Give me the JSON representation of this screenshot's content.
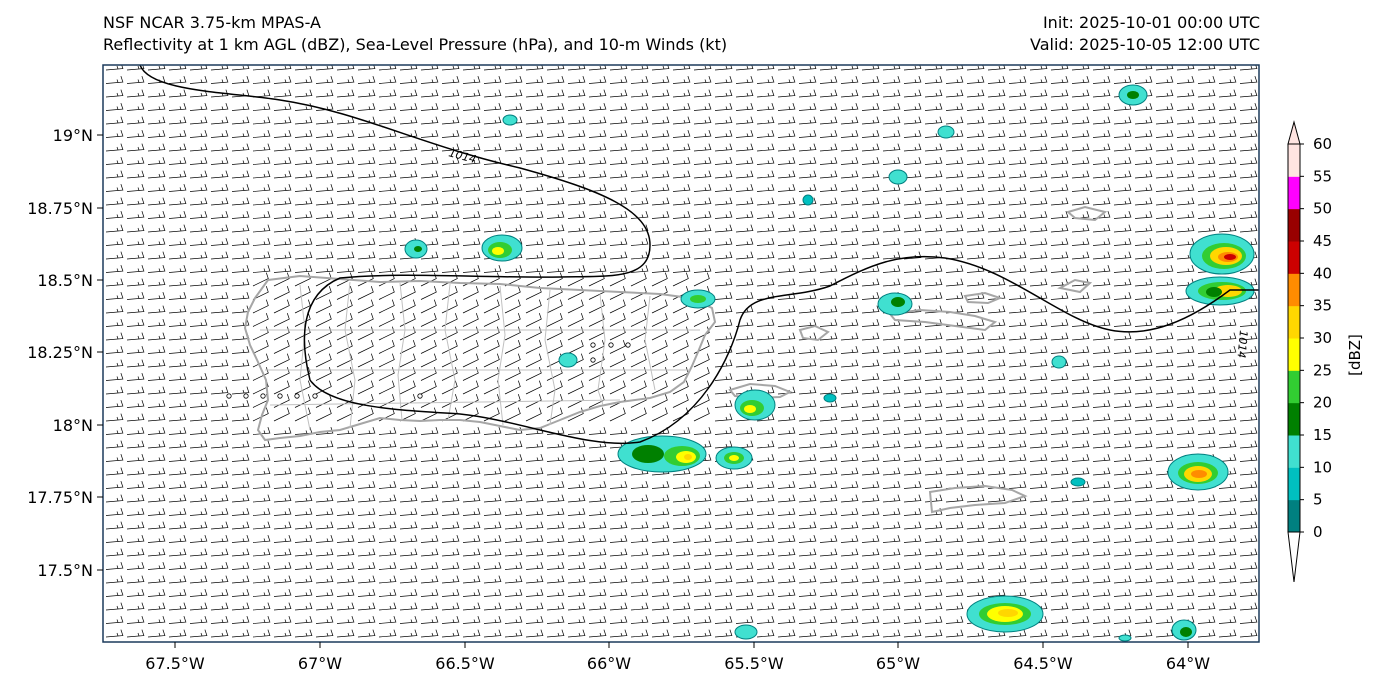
{
  "header": {
    "model": "NSF NCAR 3.75-km MPAS-A",
    "fields": "Reflectivity at 1 km AGL (dBZ), Sea-Level Pressure (hPa), and 10-m Winds (kt)",
    "init": "Init: 2025-10-01 00:00 UTC",
    "valid": "Valid: 2025-10-05 12:00 UTC"
  },
  "map": {
    "lon_ticks": [
      "67.5°W",
      "67°W",
      "66.5°W",
      "66°W",
      "65.5°W",
      "65°W",
      "64.5°W",
      "64°W"
    ],
    "lat_ticks": [
      "19°N",
      "18.75°N",
      "18.5°N",
      "18.25°N",
      "18°N",
      "17.75°N",
      "17.5°N"
    ],
    "isobar_labels": [
      "1014",
      "1014"
    ]
  },
  "colorbar": {
    "unit_label": "[dBZ]",
    "ticks": [
      "0",
      "5",
      "10",
      "15",
      "20",
      "25",
      "30",
      "35",
      "40",
      "45",
      "50",
      "55",
      "60"
    ],
    "colors": [
      "#008080",
      "#00c0c0",
      "#40e0d0",
      "#008000",
      "#32cd32",
      "#ffff00",
      "#ffd700",
      "#ff8c00",
      "#cc0000",
      "#990000",
      "#ff00ff",
      "#ffe4e1"
    ]
  }
}
